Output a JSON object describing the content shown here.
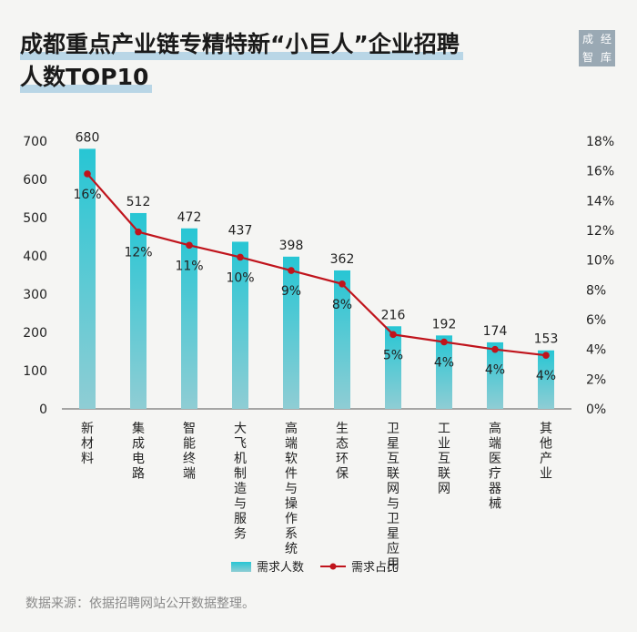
{
  "title": {
    "line1": "成都重点产业链专精特新“小巨人”企业招聘",
    "line2": "人数TOP10"
  },
  "logo": {
    "chars": [
      "成",
      "经",
      "智",
      "库"
    ]
  },
  "source": "数据来源：依据招聘网站公开数据整理。",
  "colors": {
    "bar": "#2ec5d3",
    "bar_bottom": "#9acfd6",
    "line": "#c0141c"
  },
  "chart_data": {
    "type": "bar",
    "categories": [
      "新材料",
      "集成电路",
      "智能终端",
      "大飞机制造与服务",
      "高端软件与操作系统",
      "生态环保",
      "卫星互联网与卫星应用",
      "工业互联网",
      "高端医疗器械",
      "其他产业"
    ],
    "series": [
      {
        "name": "需求人数",
        "type": "bar",
        "values": [
          680,
          512,
          472,
          437,
          398,
          362,
          216,
          192,
          174,
          153
        ],
        "labels": [
          "680",
          "512",
          "472",
          "437",
          "398",
          "362",
          "216",
          "192",
          "174",
          "153"
        ]
      },
      {
        "name": "需求占比",
        "type": "line",
        "axis": "right",
        "values": [
          15.8,
          11.9,
          11.0,
          10.2,
          9.3,
          8.4,
          5.0,
          4.5,
          4.0,
          3.6
        ],
        "labels": [
          "16%",
          "12%",
          "11%",
          "10%",
          "9%",
          "8%",
          "5%",
          "4%",
          "4%",
          "4%"
        ]
      }
    ],
    "y_left": {
      "range": [
        0,
        700
      ],
      "ticks": [
        "0",
        "100",
        "200",
        "300",
        "400",
        "500",
        "600",
        "700"
      ]
    },
    "y_right": {
      "range": [
        0,
        18
      ],
      "ticks": [
        "0%",
        "2%",
        "4%",
        "6%",
        "8%",
        "10%",
        "12%",
        "14%",
        "16%",
        "18%"
      ]
    },
    "legend_position": "bottom",
    "grid": false
  }
}
